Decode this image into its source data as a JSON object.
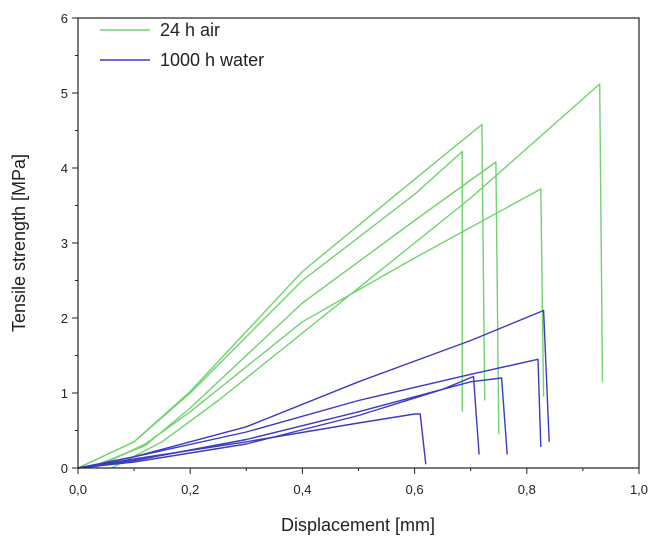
{
  "chart_data": {
    "type": "line",
    "xlabel": "Displacement [mm]",
    "ylabel": "Tensile strength [MPa]",
    "xlim": [
      0,
      1.0
    ],
    "ylim": [
      0,
      6
    ],
    "x_ticks": [
      0,
      0.2,
      0.4,
      0.6,
      0.8,
      1.0
    ],
    "x_tick_labels": [
      "0,0",
      "0,2",
      "0,4",
      "0,6",
      "0,8",
      "1,0"
    ],
    "y_ticks": [
      0,
      1,
      2,
      3,
      4,
      5,
      6
    ],
    "y_tick_labels": [
      "0",
      "1",
      "2",
      "3",
      "4",
      "5",
      "6"
    ],
    "grid": false,
    "legend": {
      "placement": "top-left"
    },
    "series": [
      {
        "name": "24 h air",
        "color": "#6fd36f",
        "curves": [
          [
            [
              0,
              0
            ],
            [
              0.1,
              0.35
            ],
            [
              0.2,
              1.0
            ],
            [
              0.4,
              2.5
            ],
            [
              0.6,
              3.65
            ],
            [
              0.685,
              4.22
            ],
            [
              0.685,
              0.75
            ]
          ],
          [
            [
              0,
              0
            ],
            [
              0.1,
              0.35
            ],
            [
              0.2,
              1.02
            ],
            [
              0.4,
              2.62
            ],
            [
              0.6,
              3.85
            ],
            [
              0.72,
              4.58
            ],
            [
              0.725,
              0.9
            ]
          ],
          [
            [
              0.02,
              0
            ],
            [
              0.12,
              0.3
            ],
            [
              0.2,
              0.8
            ],
            [
              0.4,
              2.2
            ],
            [
              0.6,
              3.3
            ],
            [
              0.745,
              4.08
            ],
            [
              0.75,
              0.45
            ]
          ],
          [
            [
              0.03,
              0
            ],
            [
              0.12,
              0.32
            ],
            [
              0.2,
              0.75
            ],
            [
              0.4,
              1.95
            ],
            [
              0.6,
              2.8
            ],
            [
              0.825,
              3.72
            ],
            [
              0.83,
              0.95
            ]
          ],
          [
            [
              0.06,
              0
            ],
            [
              0.15,
              0.35
            ],
            [
              0.25,
              0.9
            ],
            [
              0.45,
              2.1
            ],
            [
              0.7,
              3.6
            ],
            [
              0.93,
              5.12
            ],
            [
              0.935,
              1.15
            ]
          ]
        ]
      },
      {
        "name": "1000 h water",
        "color": "#3a3ac4",
        "curves": [
          [
            [
              0,
              0
            ],
            [
              0.1,
              0.12
            ],
            [
              0.3,
              0.35
            ],
            [
              0.5,
              0.6
            ],
            [
              0.6,
              0.72
            ],
            [
              0.61,
              0.72
            ],
            [
              0.62,
              0.05
            ]
          ],
          [
            [
              0,
              0
            ],
            [
              0.1,
              0.1
            ],
            [
              0.3,
              0.38
            ],
            [
              0.5,
              0.75
            ],
            [
              0.7,
              1.15
            ],
            [
              0.755,
              1.2
            ],
            [
              0.765,
              0.18
            ]
          ],
          [
            [
              0,
              0
            ],
            [
              0.1,
              0.08
            ],
            [
              0.3,
              0.32
            ],
            [
              0.5,
              0.7
            ],
            [
              0.65,
              1.05
            ],
            [
              0.705,
              1.22
            ],
            [
              0.715,
              0.18
            ]
          ],
          [
            [
              0,
              0
            ],
            [
              0.1,
              0.15
            ],
            [
              0.3,
              0.48
            ],
            [
              0.5,
              0.9
            ],
            [
              0.7,
              1.25
            ],
            [
              0.82,
              1.45
            ],
            [
              0.825,
              0.28
            ]
          ],
          [
            [
              0,
              0
            ],
            [
              0.1,
              0.15
            ],
            [
              0.3,
              0.55
            ],
            [
              0.5,
              1.15
            ],
            [
              0.7,
              1.7
            ],
            [
              0.83,
              2.1
            ],
            [
              0.84,
              0.35
            ]
          ]
        ]
      }
    ]
  }
}
